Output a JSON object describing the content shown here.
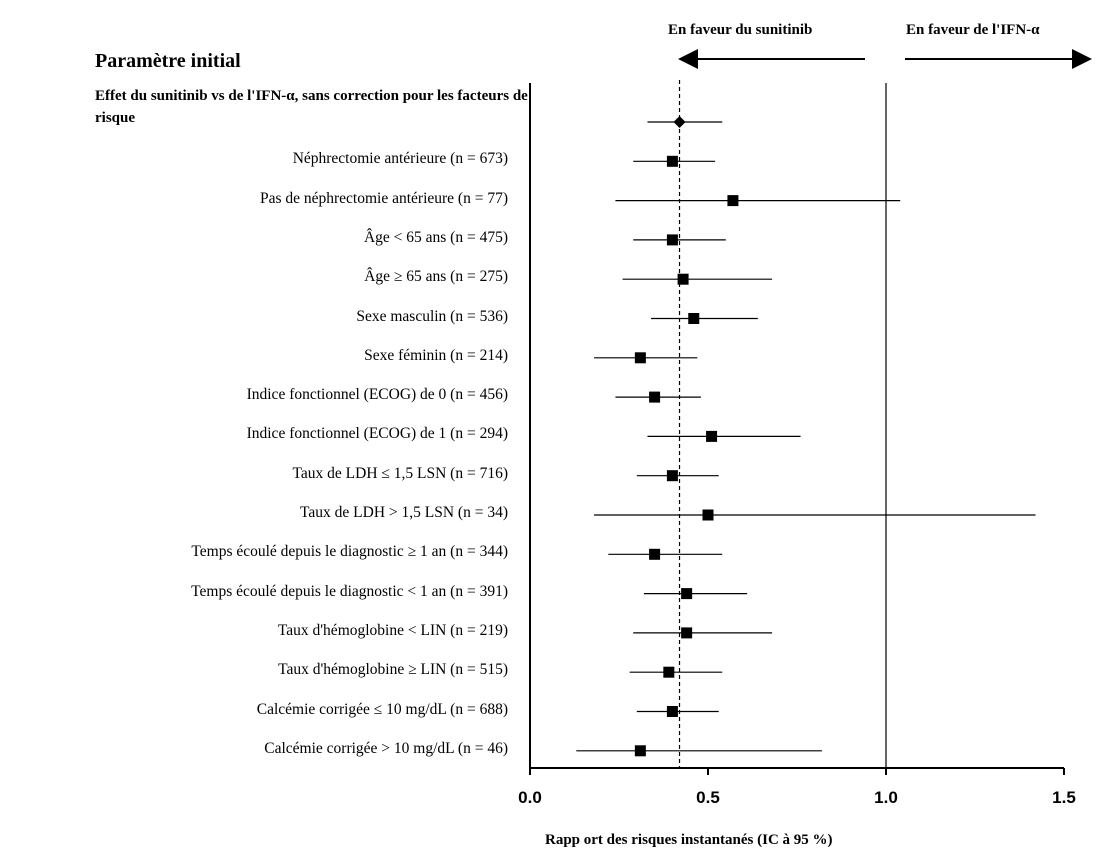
{
  "chart_data": {
    "type": "forest",
    "direction_labels": {
      "left": "En faveur du sunitinib",
      "right": "En faveur de l'IFN-α"
    },
    "header": "Paramètre initial",
    "overall_label": "Effet du sunitinib vs de l'IFN-α, sans correction pour les facteurs de risque",
    "xlabel": "Rapp ort des risques instantanés (IC à 95 %)",
    "xlim": [
      0,
      1.5
    ],
    "xticks": [
      {
        "value": 0,
        "label": "0.0"
      },
      {
        "value": 0.5,
        "label": "0.5"
      },
      {
        "value": 1.0,
        "label": "1.0"
      },
      {
        "value": 1.5,
        "label": "1.5"
      }
    ],
    "reference_line": 1.0,
    "overall_line": 0.42,
    "rows": [
      {
        "label": "",
        "hr": 0.42,
        "lo": 0.33,
        "hi": 0.54,
        "marker": "diamond"
      },
      {
        "label": "Néphrectomie antérieure (n = 673)",
        "hr": 0.4,
        "lo": 0.29,
        "hi": 0.52,
        "marker": "square"
      },
      {
        "label": "Pas de néphrectomie antérieure (n = 77)",
        "hr": 0.57,
        "lo": 0.24,
        "hi": 1.04,
        "marker": "square"
      },
      {
        "label": "Âge < 65 ans (n = 475)",
        "hr": 0.4,
        "lo": 0.29,
        "hi": 0.55,
        "marker": "square"
      },
      {
        "label": "Âge ≥ 65 ans (n = 275)",
        "hr": 0.43,
        "lo": 0.26,
        "hi": 0.68,
        "marker": "square"
      },
      {
        "label": "Sexe masculin (n = 536)",
        "hr": 0.46,
        "lo": 0.34,
        "hi": 0.64,
        "marker": "square"
      },
      {
        "label": "Sexe féminin (n = 214)",
        "hr": 0.31,
        "lo": 0.18,
        "hi": 0.47,
        "marker": "square"
      },
      {
        "label": "Indice fonctionnel (ECOG) de 0 (n = 456)",
        "hr": 0.35,
        "lo": 0.24,
        "hi": 0.48,
        "marker": "square"
      },
      {
        "label": "Indice fonctionnel (ECOG) de 1 (n = 294)",
        "hr": 0.51,
        "lo": 0.33,
        "hi": 0.76,
        "marker": "square"
      },
      {
        "label": "Taux de LDH ≤ 1,5 LSN (n = 716)",
        "hr": 0.4,
        "lo": 0.3,
        "hi": 0.53,
        "marker": "square"
      },
      {
        "label": "Taux de LDH > 1,5 LSN (n = 34)",
        "hr": 0.5,
        "lo": 0.18,
        "hi": 1.42,
        "marker": "square"
      },
      {
        "label": "Temps écoulé depuis le diagnostic ≥ 1 an (n = 344)",
        "hr": 0.35,
        "lo": 0.22,
        "hi": 0.54,
        "marker": "square"
      },
      {
        "label": "Temps écoulé depuis le diagnostic < 1 an (n = 391)",
        "hr": 0.44,
        "lo": 0.32,
        "hi": 0.61,
        "marker": "square"
      },
      {
        "label": "Taux d'hémoglobine < LIN (n = 219)",
        "hr": 0.44,
        "lo": 0.29,
        "hi": 0.68,
        "marker": "square"
      },
      {
        "label": "Taux d'hémoglobine ≥ LIN (n = 515)",
        "hr": 0.39,
        "lo": 0.28,
        "hi": 0.54,
        "marker": "square"
      },
      {
        "label": "Calcémie corrigée ≤ 10 mg/dL (n = 688)",
        "hr": 0.4,
        "lo": 0.3,
        "hi": 0.53,
        "marker": "square"
      },
      {
        "label": "Calcémie corrigée > 10 mg/dL (n = 46)",
        "hr": 0.31,
        "lo": 0.13,
        "hi": 0.82,
        "marker": "square"
      }
    ]
  }
}
